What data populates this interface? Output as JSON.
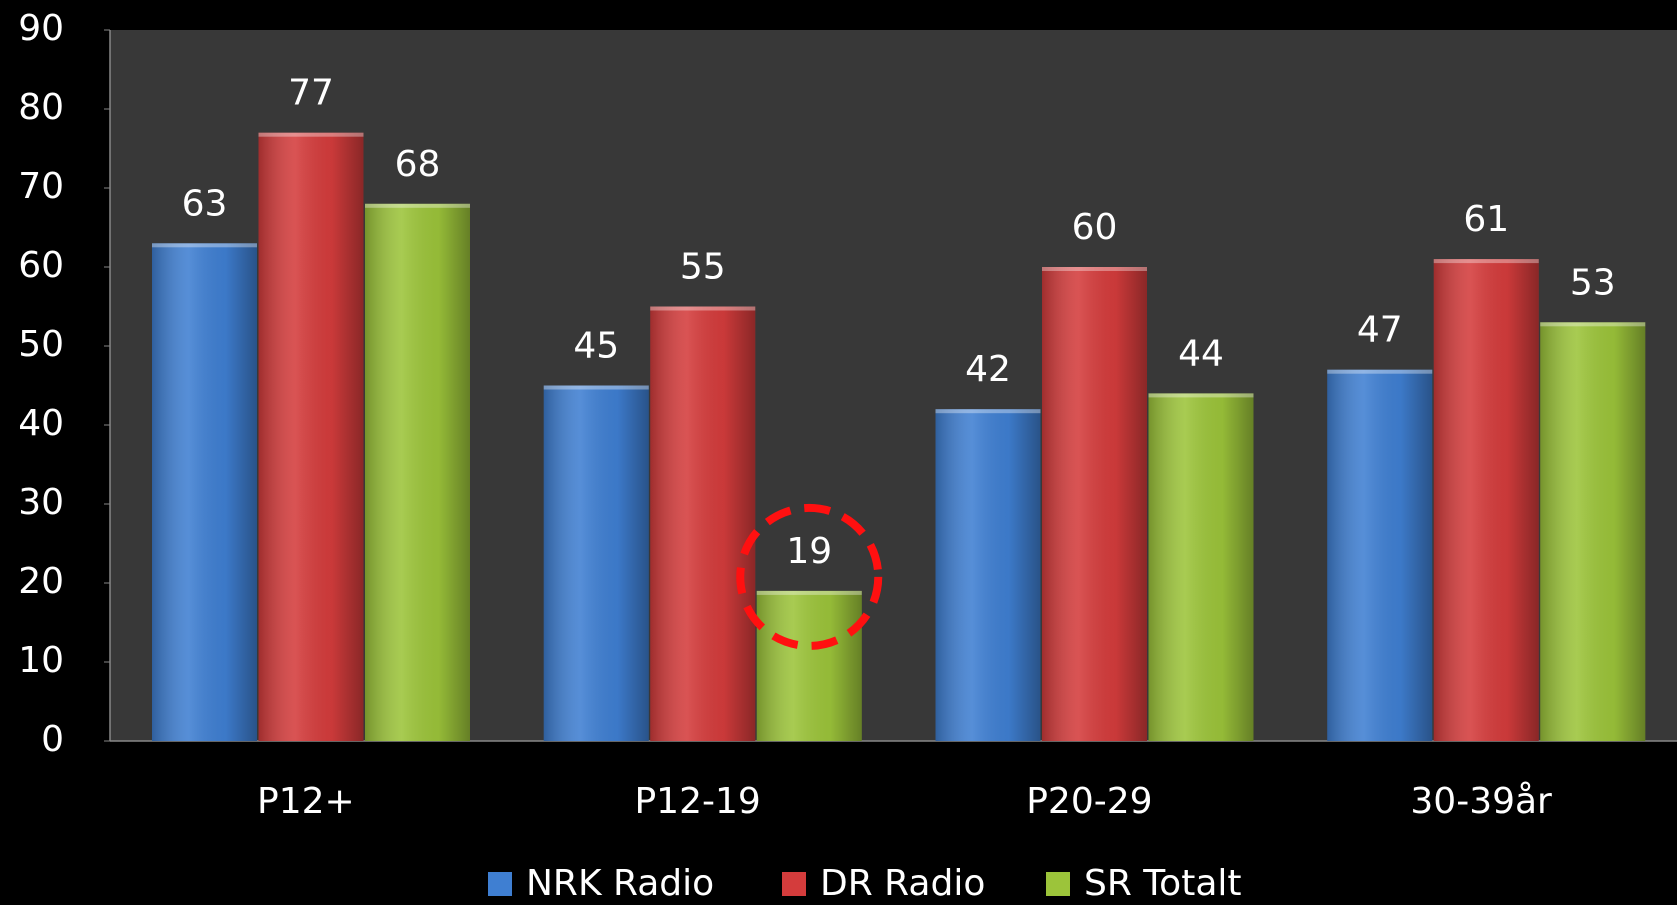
{
  "chart_data": {
    "type": "bar",
    "categories": [
      "P12+",
      "P12-19",
      "P20-29",
      "30-39år"
    ],
    "series": [
      {
        "name": "NRK Radio",
        "color": "#3f7fd2",
        "values": [
          63,
          45,
          42,
          47
        ]
      },
      {
        "name": "DR Radio",
        "color": "#d43c3c",
        "values": [
          77,
          55,
          60,
          61
        ]
      },
      {
        "name": "SR Totalt",
        "color": "#9cc43a",
        "values": [
          68,
          19,
          44,
          53
        ]
      }
    ],
    "ylim": [
      0,
      90
    ],
    "yticks": [
      0,
      10,
      20,
      30,
      40,
      50,
      60,
      70,
      80,
      90
    ],
    "legend": "bottom"
  }
}
